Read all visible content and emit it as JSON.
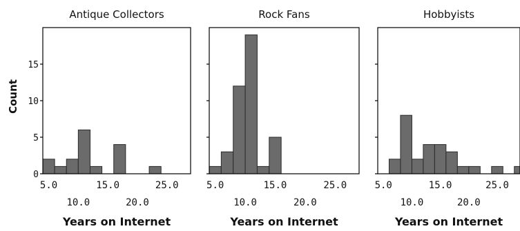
{
  "chart_data": [
    {
      "type": "bar",
      "title": "Antique Collectors",
      "xlabel": "Years on Internet",
      "ylabel": "Count",
      "xlim": [
        4,
        29
      ],
      "ylim": [
        0,
        20
      ],
      "bin_width": 2,
      "x": [
        4,
        6,
        8,
        10,
        12,
        14,
        16,
        18,
        20,
        22,
        24,
        26,
        28
      ],
      "values": [
        2,
        1,
        2,
        6,
        1,
        0,
        4,
        0,
        0,
        1,
        0,
        0,
        0
      ],
      "y_ticks": [
        0,
        5,
        10,
        15
      ],
      "x_ticks_upper": [
        "5.0",
        "15.0",
        "25.0"
      ],
      "x_ticks_lower": [
        "10.0",
        "20.0"
      ],
      "bar_color": "#6b6b6b"
    },
    {
      "type": "bar",
      "title": "Rock Fans",
      "xlabel": "Years on Internet",
      "ylabel": "",
      "xlim": [
        4,
        29
      ],
      "ylim": [
        0,
        20
      ],
      "bin_width": 2,
      "x": [
        4,
        6,
        8,
        10,
        12,
        14,
        16,
        18,
        20,
        22,
        24,
        26,
        28
      ],
      "values": [
        1,
        3,
        12,
        19,
        1,
        5,
        0,
        0,
        0,
        0,
        0,
        0,
        0
      ],
      "y_ticks": [],
      "x_ticks_upper": [
        "5.0",
        "15.0",
        "25.0"
      ],
      "x_ticks_lower": [
        "10.0",
        "20.0"
      ],
      "bar_color": "#6b6b6b"
    },
    {
      "type": "bar",
      "title": "Hobbyists",
      "xlabel": "Years on Internet",
      "ylabel": "",
      "xlim": [
        4,
        29
      ],
      "ylim": [
        0,
        20
      ],
      "bin_width": 2,
      "x": [
        4,
        6,
        8,
        10,
        12,
        14,
        16,
        18,
        20,
        22,
        24,
        26,
        28
      ],
      "values": [
        0,
        2,
        8,
        2,
        4,
        4,
        3,
        1,
        1,
        0,
        1,
        0,
        1
      ],
      "y_ticks": [],
      "x_ticks_upper": [
        "5.0",
        "15.0",
        "25.0"
      ],
      "x_ticks_lower": [
        "10.0",
        "20.0"
      ],
      "bar_color": "#6b6b6b"
    }
  ]
}
